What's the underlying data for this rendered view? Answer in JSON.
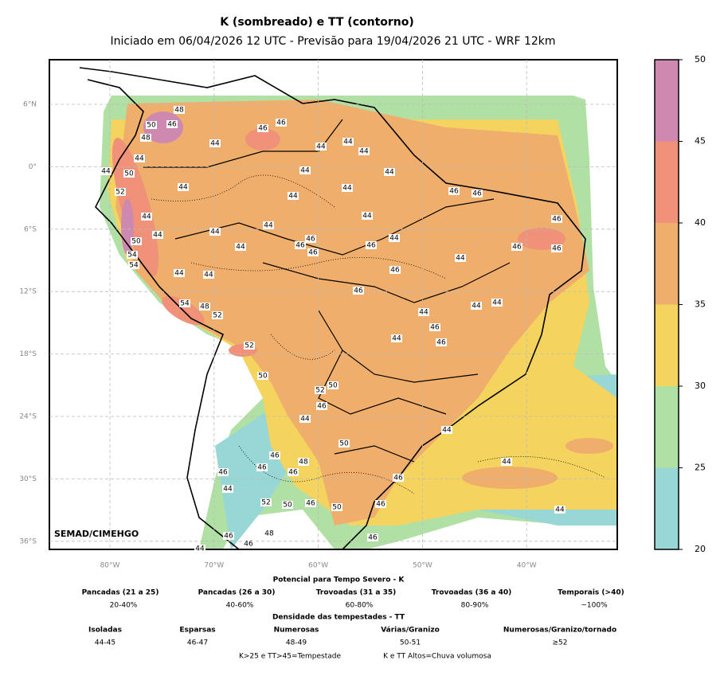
{
  "title": "K (sombreado) e TT (contorno)",
  "subtitle": "Iniciado em 06/04/2026 12 UTC - Previsão para 19/04/2026 21 UTC - WRF 12km",
  "map": {
    "lat_labels": [
      "6°N",
      "0°",
      "6°S",
      "12°S",
      "18°S",
      "24°S",
      "30°S",
      "36°S"
    ],
    "lon_labels": [
      "80°W",
      "70°W",
      "60°W",
      "50°W",
      "40°W"
    ],
    "credit": "SEMAD/CIMEHGO",
    "grid": true,
    "contour_labels": [
      48,
      50,
      46,
      48,
      44,
      44,
      50,
      52,
      44,
      44,
      46,
      46,
      44,
      44,
      44,
      44,
      44,
      44,
      44,
      46,
      46,
      44,
      44,
      44,
      44,
      44,
      50,
      54,
      54,
      44,
      46,
      46,
      46,
      46,
      44,
      46,
      46,
      46,
      44,
      46,
      44,
      44,
      46,
      54,
      48,
      52,
      44,
      44,
      44,
      46,
      46,
      44,
      52,
      50,
      52,
      50,
      46,
      44,
      44,
      50,
      46,
      48,
      46,
      46,
      46,
      44,
      44,
      46,
      52,
      50,
      46,
      50,
      46,
      44,
      48,
      46,
      46,
      46,
      44
    ],
    "colorbar": {
      "lim": [
        20,
        50
      ],
      "ticks": [
        20,
        25,
        30,
        35,
        40,
        45,
        50
      ],
      "colors": [
        "#97d7d6",
        "#b1e0a4",
        "#f5d35f",
        "#f0ae6c",
        "#f09179",
        "#cd89af"
      ]
    }
  },
  "legend": {
    "k_title": "Potencial para Tempo Severo - K",
    "k_classes": [
      {
        "name": "Pancadas (21 a 25)",
        "range": "20-40%"
      },
      {
        "name": "Pancadas (26 a 30)",
        "range": "40-60%"
      },
      {
        "name": "Trovoadas (31 a 35)",
        "range": "60-80%"
      },
      {
        "name": "Trovoadas (36 a 40)",
        "range": "80-90%"
      },
      {
        "name": "Temporais (>40)",
        "range": "~100%"
      }
    ],
    "tt_title": "Densidade das tempestades - TT",
    "tt_classes": [
      {
        "name": "Isoladas",
        "range": "44-45"
      },
      {
        "name": "Esparsas",
        "range": "46-47"
      },
      {
        "name": "Numerosas",
        "range": "48-49"
      },
      {
        "name": "Várias/Granizo",
        "range": "50-51"
      },
      {
        "name": "Numerosas/Granizo/tornado",
        "range": "≥52"
      }
    ],
    "notes": [
      "K>25 e TT>45=Tempestade",
      "K e TT Altos=Chuva volumosa"
    ]
  }
}
